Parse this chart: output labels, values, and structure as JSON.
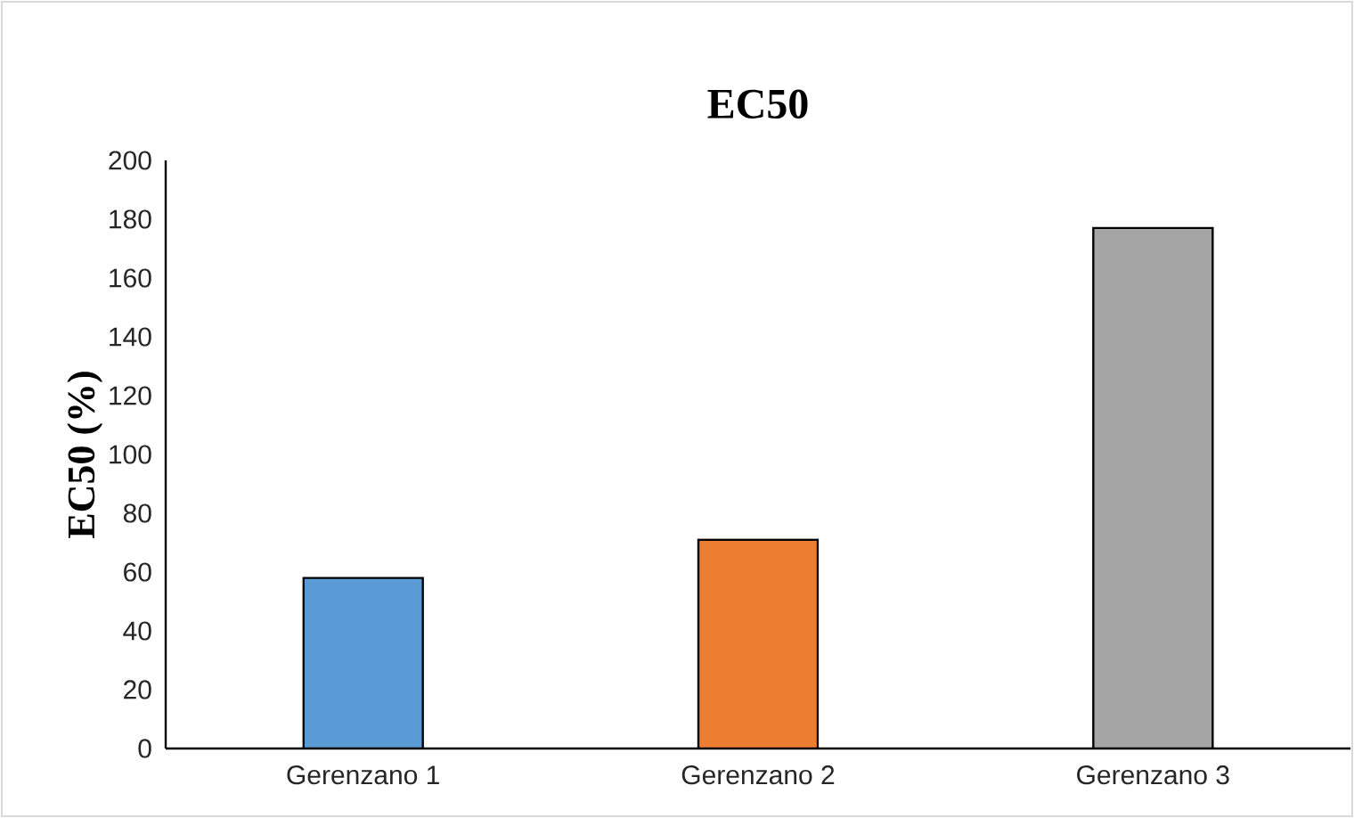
{
  "chart_data": {
    "type": "bar",
    "title": "EC50",
    "ylabel": "EC50 (%)",
    "categories": [
      "Gerenzano 1",
      "Gerenzano 2",
      "Gerenzano 3"
    ],
    "values": [
      58,
      71,
      177
    ],
    "colors": [
      "#5b9bd5",
      "#ed7d31",
      "#a5a5a5"
    ],
    "ylim": [
      0,
      200
    ],
    "yticks": [
      0,
      20,
      40,
      60,
      80,
      100,
      120,
      140,
      160,
      180,
      200
    ]
  }
}
